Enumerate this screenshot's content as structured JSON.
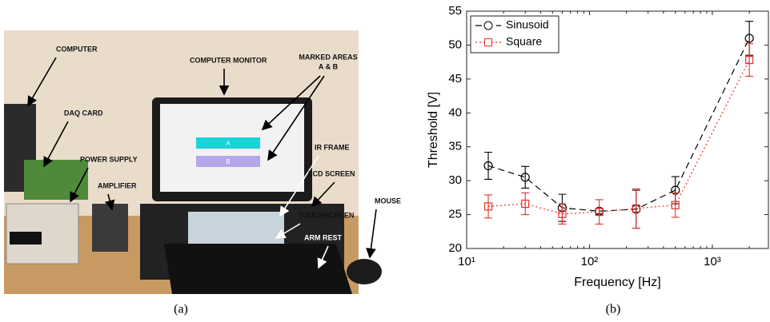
{
  "photo": {
    "labels": [
      "COMPUTER",
      "DAQ CARD",
      "POWER SUPPLY",
      "AMPLIFIER",
      "COMPUTER MONITOR",
      "MARKED AREAS",
      "A & B",
      "IR FRAME",
      "LCD SCREEN",
      "TOUCHSCREEN",
      "ARM REST",
      "MOUSE"
    ],
    "screen_areas": [
      "A",
      "B"
    ],
    "caption": "(a)"
  },
  "chart_data": {
    "type": "line",
    "caption": "(b)",
    "x_label": "Frequency [Hz]",
    "y_label": "Threshold [V]",
    "x": [
      15,
      30,
      60,
      120,
      240,
      500,
      2000
    ],
    "log_x": true,
    "xlim": [
      10,
      2860
    ],
    "xticks": [
      {
        "value": 10,
        "label": "10¹"
      },
      {
        "value": 100,
        "label": "10²"
      },
      {
        "value": 1000,
        "label": "10³"
      }
    ],
    "ylim": [
      20,
      55
    ],
    "yticks": [
      20,
      25,
      30,
      35,
      40,
      45,
      50,
      55
    ],
    "grid": false,
    "legend": "top-left",
    "series": [
      {
        "name": "Sinusoid",
        "color": "#000000",
        "marker": "circle",
        "dash": "8,5",
        "values": [
          32.2,
          30.5,
          26,
          25.5,
          25.8,
          28.6,
          51
        ],
        "errors": [
          2,
          1.6,
          2,
          0.4,
          2.8,
          2,
          2.5
        ]
      },
      {
        "name": "Square",
        "color": "#e8322a",
        "marker": "square",
        "dash": "2,3",
        "values": [
          26.2,
          26.6,
          25.1,
          25.4,
          25.9,
          26.4,
          47.8
        ],
        "errors": [
          1.7,
          1.6,
          1.5,
          1.8,
          2.9,
          1.8,
          2.4
        ]
      }
    ]
  }
}
